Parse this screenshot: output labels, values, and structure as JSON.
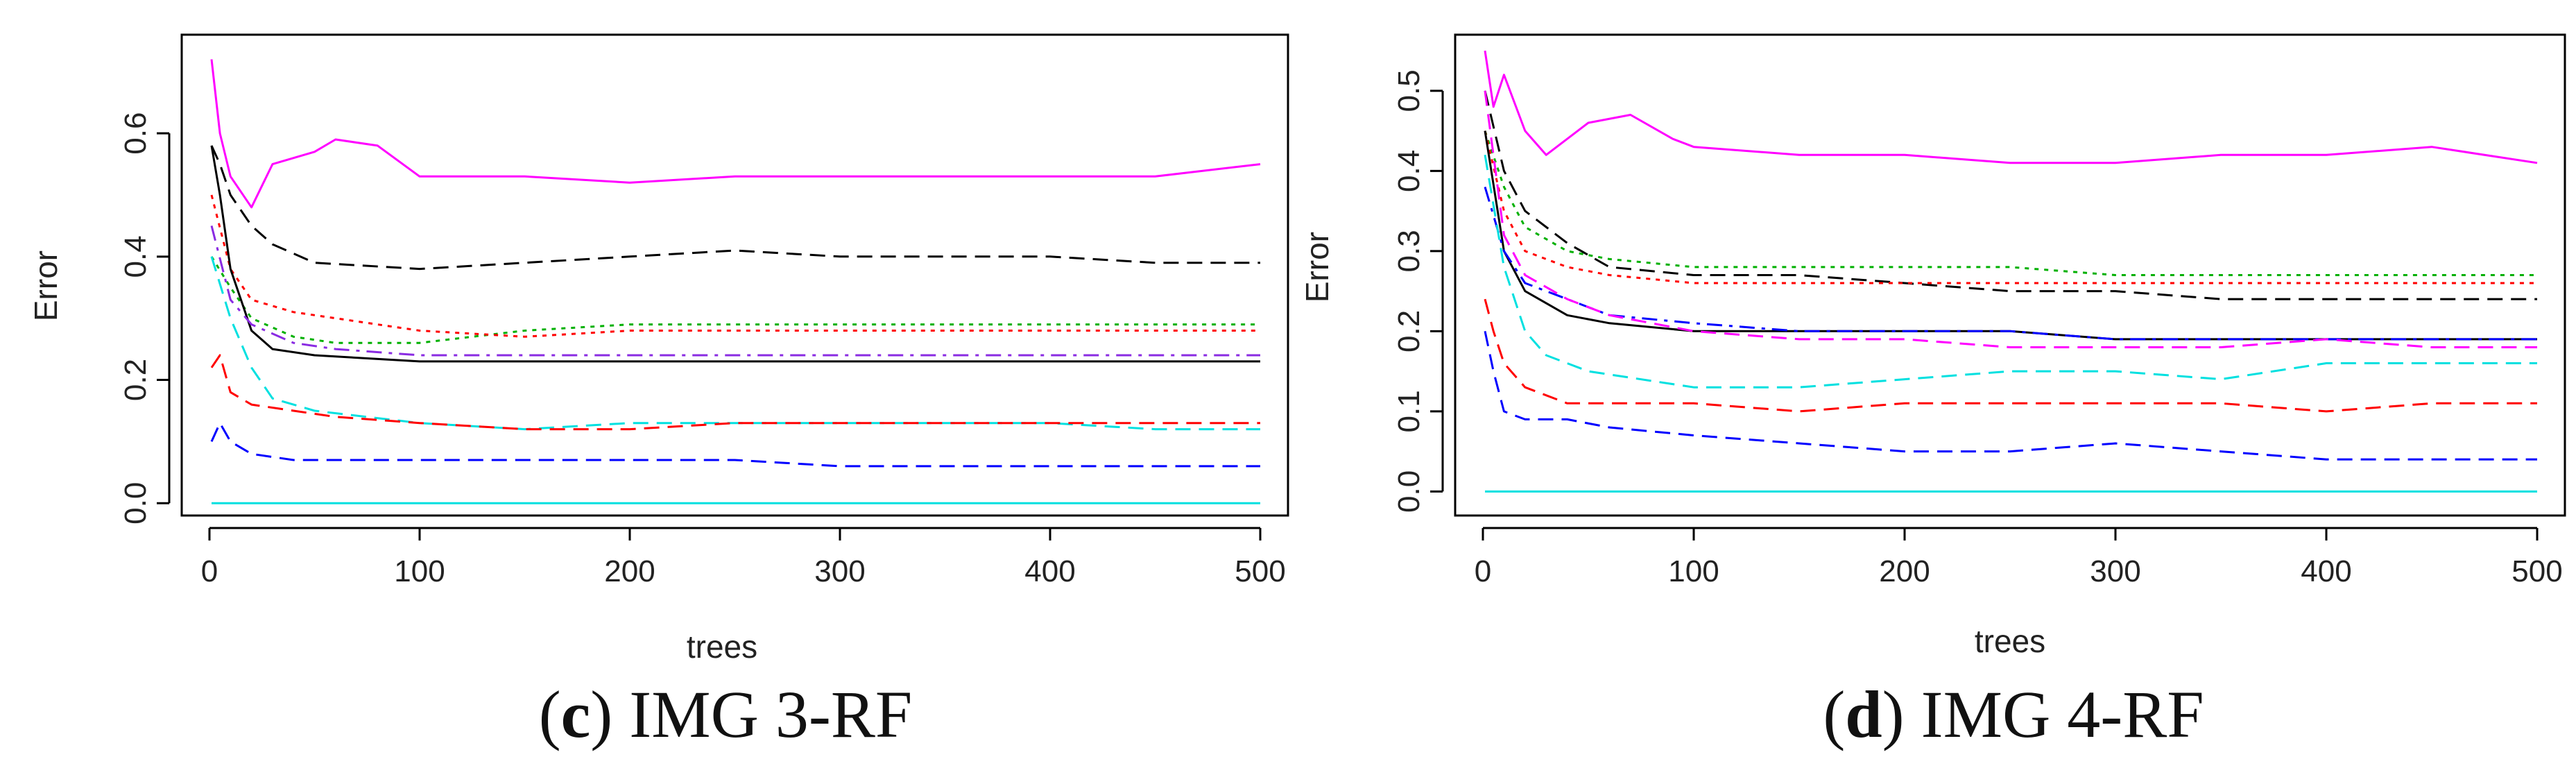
{
  "chart_data": [
    {
      "type": "line",
      "caption_letter": "c",
      "caption_open": "(",
      "caption_close": ")",
      "caption_title": "IMG 3-RF",
      "xlabel": "trees",
      "ylabel": "Error",
      "xlim": [
        0,
        500
      ],
      "ylim": [
        -0.02,
        0.76
      ],
      "xticks": [
        0,
        100,
        200,
        300,
        400,
        500
      ],
      "yticks": [
        0.0,
        0.2,
        0.4,
        0.6
      ],
      "ytick_labels": [
        "0.0",
        "0.2",
        "0.4",
        "0.6"
      ],
      "grid": false,
      "series": [
        {
          "name": "magenta-solid",
          "color": "#ff00ff",
          "dash": "solid",
          "x": [
            1,
            5,
            10,
            20,
            30,
            50,
            60,
            80,
            100,
            150,
            200,
            250,
            300,
            350,
            400,
            450,
            500
          ],
          "y": [
            0.72,
            0.6,
            0.53,
            0.48,
            0.55,
            0.57,
            0.59,
            0.58,
            0.53,
            0.53,
            0.52,
            0.53,
            0.53,
            0.53,
            0.53,
            0.53,
            0.55
          ]
        },
        {
          "name": "black-dashed",
          "color": "#000000",
          "dash": "dashed",
          "x": [
            1,
            5,
            10,
            20,
            30,
            50,
            100,
            150,
            200,
            250,
            300,
            350,
            400,
            450,
            500
          ],
          "y": [
            0.58,
            0.55,
            0.5,
            0.45,
            0.42,
            0.39,
            0.38,
            0.39,
            0.4,
            0.41,
            0.4,
            0.4,
            0.4,
            0.39,
            0.39
          ]
        },
        {
          "name": "green-dotted",
          "color": "#00b000",
          "dash": "dotted",
          "x": [
            1,
            10,
            20,
            40,
            60,
            100,
            150,
            200,
            250,
            300,
            350,
            400,
            450,
            500
          ],
          "y": [
            0.4,
            0.35,
            0.3,
            0.27,
            0.26,
            0.26,
            0.28,
            0.29,
            0.29,
            0.29,
            0.29,
            0.29,
            0.29,
            0.29
          ]
        },
        {
          "name": "red-dotted",
          "color": "#ff0000",
          "dash": "dotted",
          "x": [
            1,
            10,
            20,
            40,
            60,
            100,
            150,
            200,
            250,
            300,
            350,
            400,
            450,
            500
          ],
          "y": [
            0.5,
            0.38,
            0.33,
            0.31,
            0.3,
            0.28,
            0.27,
            0.28,
            0.28,
            0.28,
            0.28,
            0.28,
            0.28,
            0.28
          ]
        },
        {
          "name": "black-solid",
          "color": "#000000",
          "dash": "solid",
          "x": [
            1,
            5,
            10,
            20,
            30,
            50,
            100,
            150,
            200,
            250,
            300,
            350,
            400,
            450,
            500
          ],
          "y": [
            0.58,
            0.5,
            0.38,
            0.28,
            0.25,
            0.24,
            0.23,
            0.23,
            0.23,
            0.23,
            0.23,
            0.23,
            0.23,
            0.23,
            0.23
          ]
        },
        {
          "name": "purple-dashdot",
          "color": "#8a2be2",
          "dash": "dashdot",
          "x": [
            1,
            10,
            20,
            40,
            60,
            100,
            150,
            200,
            250,
            300,
            350,
            400,
            450,
            500
          ],
          "y": [
            0.45,
            0.33,
            0.29,
            0.26,
            0.25,
            0.24,
            0.24,
            0.24,
            0.24,
            0.24,
            0.24,
            0.24,
            0.24,
            0.24
          ]
        },
        {
          "name": "cyan-dashed",
          "color": "#00e0e0",
          "dash": "dashed",
          "x": [
            1,
            10,
            20,
            30,
            50,
            100,
            150,
            200,
            250,
            300,
            350,
            400,
            450,
            500
          ],
          "y": [
            0.4,
            0.3,
            0.22,
            0.17,
            0.15,
            0.13,
            0.12,
            0.13,
            0.13,
            0.13,
            0.13,
            0.13,
            0.12,
            0.12
          ]
        },
        {
          "name": "red-dashed",
          "color": "#ff0000",
          "dash": "dashed",
          "x": [
            1,
            5,
            10,
            20,
            40,
            60,
            100,
            150,
            200,
            250,
            300,
            350,
            400,
            450,
            500
          ],
          "y": [
            0.22,
            0.24,
            0.18,
            0.16,
            0.15,
            0.14,
            0.13,
            0.12,
            0.12,
            0.13,
            0.13,
            0.13,
            0.13,
            0.13,
            0.13
          ]
        },
        {
          "name": "blue-dashed",
          "color": "#0000ff",
          "dash": "dashed",
          "x": [
            1,
            5,
            10,
            20,
            40,
            60,
            100,
            150,
            200,
            250,
            300,
            350,
            400,
            450,
            500
          ],
          "y": [
            0.1,
            0.13,
            0.1,
            0.08,
            0.07,
            0.07,
            0.07,
            0.07,
            0.07,
            0.07,
            0.06,
            0.06,
            0.06,
            0.06,
            0.06
          ]
        },
        {
          "name": "cyan-solid",
          "color": "#00e0e0",
          "dash": "solid",
          "x": [
            1,
            500
          ],
          "y": [
            0.0,
            0.0
          ]
        }
      ]
    },
    {
      "type": "line",
      "caption_letter": "d",
      "caption_open": "(",
      "caption_close": ")",
      "caption_title": "IMG 4-RF",
      "xlabel": "trees",
      "ylabel": "Error",
      "xlim": [
        0,
        500
      ],
      "ylim": [
        -0.03,
        0.57
      ],
      "xticks": [
        0,
        100,
        200,
        300,
        400,
        500
      ],
      "yticks": [
        0.0,
        0.1,
        0.2,
        0.3,
        0.4,
        0.5
      ],
      "ytick_labels": [
        "0.0",
        "0.1",
        "0.2",
        "0.3",
        "0.4",
        "0.5"
      ],
      "grid": false,
      "series": [
        {
          "name": "magenta-solid",
          "color": "#ff00ff",
          "dash": "solid",
          "x": [
            1,
            5,
            10,
            20,
            30,
            50,
            70,
            90,
            100,
            150,
            200,
            250,
            300,
            350,
            400,
            450,
            500
          ],
          "y": [
            0.55,
            0.48,
            0.52,
            0.45,
            0.42,
            0.46,
            0.47,
            0.44,
            0.43,
            0.42,
            0.42,
            0.41,
            0.41,
            0.42,
            0.42,
            0.43,
            0.41
          ]
        },
        {
          "name": "green-dotted",
          "color": "#00b000",
          "dash": "dotted",
          "x": [
            1,
            10,
            20,
            40,
            60,
            100,
            150,
            200,
            250,
            300,
            350,
            400,
            450,
            500
          ],
          "y": [
            0.45,
            0.38,
            0.33,
            0.3,
            0.29,
            0.28,
            0.28,
            0.28,
            0.28,
            0.27,
            0.27,
            0.27,
            0.27,
            0.27
          ]
        },
        {
          "name": "black-dashed",
          "color": "#000000",
          "dash": "dashed",
          "x": [
            1,
            10,
            20,
            40,
            60,
            100,
            150,
            200,
            250,
            300,
            350,
            400,
            450,
            500
          ],
          "y": [
            0.5,
            0.4,
            0.35,
            0.31,
            0.28,
            0.27,
            0.27,
            0.26,
            0.25,
            0.25,
            0.24,
            0.24,
            0.24,
            0.24
          ]
        },
        {
          "name": "red-dotted",
          "color": "#ff0000",
          "dash": "dotted",
          "x": [
            1,
            10,
            20,
            40,
            60,
            100,
            150,
            200,
            250,
            300,
            350,
            400,
            450,
            500
          ],
          "y": [
            0.45,
            0.35,
            0.3,
            0.28,
            0.27,
            0.26,
            0.26,
            0.26,
            0.26,
            0.26,
            0.26,
            0.26,
            0.26,
            0.26
          ]
        },
        {
          "name": "black-solid",
          "color": "#000000",
          "dash": "solid",
          "x": [
            1,
            10,
            20,
            40,
            60,
            100,
            150,
            200,
            250,
            300,
            350,
            400,
            450,
            500
          ],
          "y": [
            0.45,
            0.3,
            0.25,
            0.22,
            0.21,
            0.2,
            0.2,
            0.2,
            0.2,
            0.19,
            0.19,
            0.19,
            0.19,
            0.19
          ]
        },
        {
          "name": "blue-dashdot",
          "color": "#0000ff",
          "dash": "dashdot",
          "x": [
            1,
            10,
            20,
            40,
            60,
            100,
            150,
            200,
            250,
            300,
            350,
            400,
            450,
            500
          ],
          "y": [
            0.38,
            0.3,
            0.26,
            0.24,
            0.22,
            0.21,
            0.2,
            0.2,
            0.2,
            0.19,
            0.19,
            0.19,
            0.19,
            0.19
          ]
        },
        {
          "name": "magenta-dashed",
          "color": "#ff00ff",
          "dash": "dashed",
          "x": [
            1,
            10,
            20,
            40,
            60,
            100,
            150,
            200,
            250,
            300,
            350,
            400,
            450,
            500
          ],
          "y": [
            0.5,
            0.32,
            0.27,
            0.24,
            0.22,
            0.2,
            0.19,
            0.19,
            0.18,
            0.18,
            0.18,
            0.19,
            0.18,
            0.18
          ]
        },
        {
          "name": "cyan-dashed",
          "color": "#00e0e0",
          "dash": "dashed",
          "x": [
            1,
            10,
            20,
            30,
            50,
            100,
            150,
            200,
            250,
            300,
            350,
            400,
            450,
            500
          ],
          "y": [
            0.42,
            0.28,
            0.2,
            0.17,
            0.15,
            0.13,
            0.13,
            0.14,
            0.15,
            0.15,
            0.14,
            0.16,
            0.16,
            0.16
          ]
        },
        {
          "name": "red-dashed",
          "color": "#ff0000",
          "dash": "dashed",
          "x": [
            1,
            5,
            10,
            20,
            40,
            60,
            100,
            150,
            200,
            250,
            300,
            350,
            400,
            450,
            500
          ],
          "y": [
            0.24,
            0.2,
            0.16,
            0.13,
            0.11,
            0.11,
            0.11,
            0.1,
            0.11,
            0.11,
            0.11,
            0.11,
            0.1,
            0.11,
            0.11
          ]
        },
        {
          "name": "blue-dashed",
          "color": "#0000ff",
          "dash": "dashed",
          "x": [
            1,
            5,
            10,
            20,
            40,
            60,
            100,
            150,
            200,
            250,
            300,
            350,
            400,
            450,
            500
          ],
          "y": [
            0.2,
            0.15,
            0.1,
            0.09,
            0.09,
            0.08,
            0.07,
            0.06,
            0.05,
            0.05,
            0.06,
            0.05,
            0.04,
            0.04,
            0.04
          ]
        },
        {
          "name": "cyan-solid",
          "color": "#00e0e0",
          "dash": "solid",
          "x": [
            1,
            500
          ],
          "y": [
            0.0,
            0.0
          ]
        }
      ]
    }
  ]
}
